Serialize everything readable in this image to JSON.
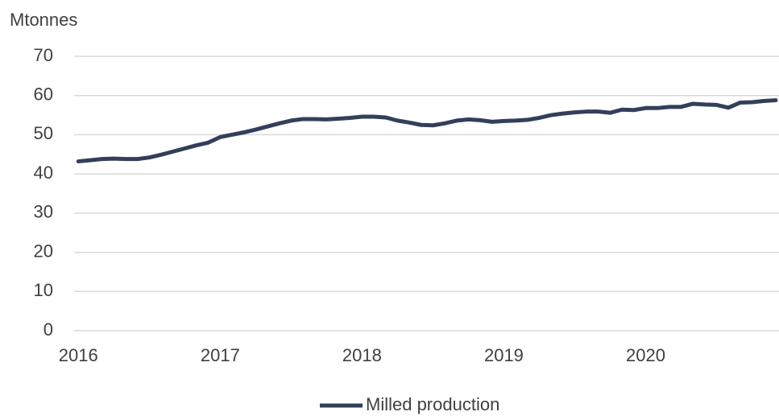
{
  "chart_data": {
    "type": "line",
    "y_axis_label": "Mtonnes",
    "x": [
      2016,
      2016.083,
      2016.167,
      2016.25,
      2016.333,
      2016.417,
      2016.5,
      2016.583,
      2016.667,
      2016.75,
      2016.833,
      2016.917,
      2017,
      2017.083,
      2017.167,
      2017.25,
      2017.333,
      2017.417,
      2017.5,
      2017.583,
      2017.667,
      2017.75,
      2017.833,
      2017.917,
      2018,
      2018.083,
      2018.167,
      2018.25,
      2018.333,
      2018.417,
      2018.5,
      2018.583,
      2018.667,
      2018.75,
      2018.833,
      2018.917,
      2019,
      2019.083,
      2019.167,
      2019.25,
      2019.333,
      2019.417,
      2019.5,
      2019.583,
      2019.667,
      2019.75,
      2019.833,
      2019.917,
      2020,
      2020.083,
      2020.167,
      2020.25,
      2020.333,
      2020.417,
      2020.5,
      2020.583,
      2020.667,
      2020.75,
      2020.833,
      2020.917
    ],
    "series": [
      {
        "name": "Milled production",
        "color": "#333f5a",
        "values": [
          43.2,
          43.5,
          43.8,
          43.9,
          43.8,
          43.8,
          44.2,
          44.9,
          45.7,
          46.5,
          47.3,
          48.0,
          49.4,
          50.0,
          50.6,
          51.3,
          52.1,
          52.9,
          53.6,
          54.0,
          54.0,
          53.9,
          54.1,
          54.3,
          54.6,
          54.6,
          54.4,
          53.6,
          53.1,
          52.5,
          52.4,
          52.9,
          53.6,
          53.9,
          53.7,
          53.3,
          53.5,
          53.6,
          53.8,
          54.3,
          55.0,
          55.4,
          55.7,
          55.9,
          55.9,
          55.6,
          56.4,
          56.3,
          56.8,
          56.8,
          57.1,
          57.1,
          57.9,
          57.7,
          57.6,
          56.9,
          58.2,
          58.3,
          58.6,
          58.8
        ]
      }
    ],
    "xlim": [
      2015.97,
      2020.94
    ],
    "xticks": [
      2016,
      2017,
      2018,
      2019,
      2020
    ],
    "ylim": [
      0,
      70
    ],
    "yticks": [
      0,
      10,
      20,
      30,
      40,
      50,
      60,
      70
    ],
    "grid": true,
    "legend": "bottom"
  }
}
